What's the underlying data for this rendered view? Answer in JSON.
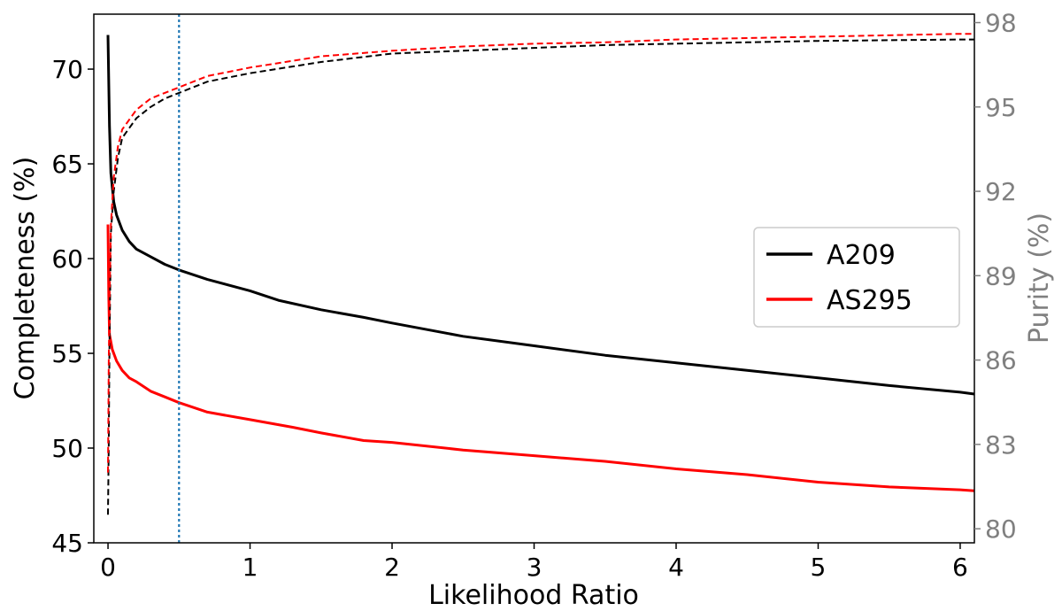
{
  "chart_data": {
    "type": "line",
    "xlabel": "Likelihood Ratio",
    "ylabel": "Completeness (%)",
    "ylabel_right": "Purity (%)",
    "xlim": [
      -0.1,
      6.1
    ],
    "ylim": [
      45,
      72.9
    ],
    "ylim_right": [
      79.5,
      98.3
    ],
    "x_ticks": [
      0,
      1,
      2,
      3,
      4,
      5,
      6
    ],
    "y_ticks": [
      45,
      50,
      55,
      60,
      65,
      70
    ],
    "y_ticks_right": [
      80,
      83,
      86,
      89,
      92,
      95,
      98
    ],
    "grid": false,
    "legend_position": "center-right",
    "vline_x": 0.5,
    "colors": {
      "A209": "#000000",
      "AS295": "#ff0000",
      "vline": "#1f77b4",
      "right_axis": "#808080"
    },
    "series": [
      {
        "name": "A209",
        "axis": "left",
        "style": "solid",
        "points": [
          [
            0,
            71.8
          ],
          [
            0.01,
            67
          ],
          [
            0.02,
            64.5
          ],
          [
            0.04,
            63
          ],
          [
            0.06,
            62.3
          ],
          [
            0.1,
            61.5
          ],
          [
            0.15,
            60.9
          ],
          [
            0.2,
            60.5
          ],
          [
            0.3,
            60.1
          ],
          [
            0.4,
            59.7
          ],
          [
            0.5,
            59.4
          ],
          [
            0.7,
            58.9
          ],
          [
            1,
            58.3
          ],
          [
            1.2,
            57.8
          ],
          [
            1.5,
            57.3
          ],
          [
            1.8,
            56.9
          ],
          [
            2,
            56.6
          ],
          [
            2.5,
            55.9
          ],
          [
            3,
            55.4
          ],
          [
            3.5,
            54.9
          ],
          [
            4,
            54.5
          ],
          [
            4.5,
            54.1
          ],
          [
            5,
            53.7
          ],
          [
            5.5,
            53.3
          ],
          [
            6,
            52.95
          ],
          [
            6.1,
            52.85
          ]
        ]
      },
      {
        "name": "AS295",
        "axis": "left",
        "style": "solid",
        "points": [
          [
            0,
            61.8
          ],
          [
            0.005,
            58
          ],
          [
            0.01,
            56
          ],
          [
            0.03,
            55.2
          ],
          [
            0.06,
            54.6
          ],
          [
            0.1,
            54.1
          ],
          [
            0.15,
            53.7
          ],
          [
            0.2,
            53.5
          ],
          [
            0.3,
            53
          ],
          [
            0.4,
            52.7
          ],
          [
            0.5,
            52.4
          ],
          [
            0.7,
            51.9
          ],
          [
            1,
            51.5
          ],
          [
            1.3,
            51.1
          ],
          [
            1.5,
            50.8
          ],
          [
            1.8,
            50.4
          ],
          [
            2,
            50.3
          ],
          [
            2.5,
            49.9
          ],
          [
            3,
            49.6
          ],
          [
            3.5,
            49.3
          ],
          [
            4,
            48.9
          ],
          [
            4.5,
            48.6
          ],
          [
            5,
            48.2
          ],
          [
            5.5,
            47.95
          ],
          [
            6,
            47.8
          ],
          [
            6.1,
            47.75
          ]
        ]
      },
      {
        "name": "A209 purity",
        "axis": "right",
        "style": "dashed",
        "points": [
          [
            0,
            80.5
          ],
          [
            0.005,
            83
          ],
          [
            0.01,
            86.5
          ],
          [
            0.02,
            90.5
          ],
          [
            0.04,
            92
          ],
          [
            0.07,
            93.2
          ],
          [
            0.1,
            93.9
          ],
          [
            0.2,
            94.6
          ],
          [
            0.3,
            95
          ],
          [
            0.4,
            95.3
          ],
          [
            0.5,
            95.5
          ],
          [
            0.7,
            95.9
          ],
          [
            1,
            96.2
          ],
          [
            1.5,
            96.6
          ],
          [
            2,
            96.9
          ],
          [
            2.5,
            97
          ],
          [
            3,
            97.1
          ],
          [
            3.5,
            97.2
          ],
          [
            4,
            97.25
          ],
          [
            4.5,
            97.3
          ],
          [
            5,
            97.35
          ],
          [
            6,
            97.4
          ],
          [
            6.1,
            97.4
          ]
        ]
      },
      {
        "name": "AS295 purity",
        "axis": "right",
        "style": "dashed",
        "points": [
          [
            0,
            82
          ],
          [
            0.005,
            86
          ],
          [
            0.01,
            88
          ],
          [
            0.02,
            90.8
          ],
          [
            0.04,
            92.5
          ],
          [
            0.07,
            93.6
          ],
          [
            0.1,
            94.2
          ],
          [
            0.2,
            94.9
          ],
          [
            0.3,
            95.3
          ],
          [
            0.4,
            95.5
          ],
          [
            0.5,
            95.7
          ],
          [
            0.7,
            96.1
          ],
          [
            1,
            96.4
          ],
          [
            1.5,
            96.8
          ],
          [
            2,
            97
          ],
          [
            2.5,
            97.15
          ],
          [
            3,
            97.25
          ],
          [
            3.5,
            97.3
          ],
          [
            4,
            97.4
          ],
          [
            4.5,
            97.45
          ],
          [
            5,
            97.5
          ],
          [
            6,
            97.6
          ],
          [
            6.1,
            97.6
          ]
        ]
      }
    ],
    "legend": [
      {
        "label": "A209",
        "color": "#000000"
      },
      {
        "label": "AS295",
        "color": "#ff0000"
      }
    ]
  }
}
